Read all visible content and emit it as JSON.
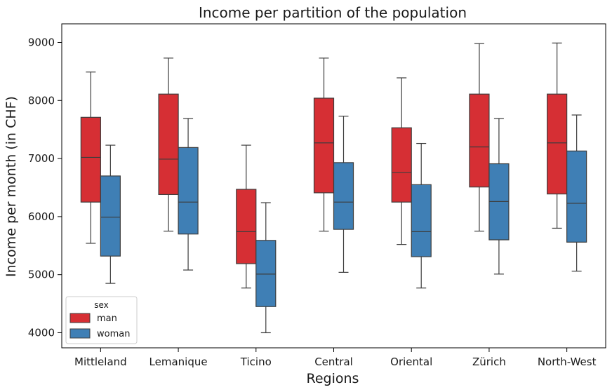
{
  "chart_data": {
    "type": "box",
    "title": "Income per partition of the population",
    "xlabel": "Regions",
    "ylabel": "Income per month (in CHF)",
    "categories": [
      "Mittleland",
      "Lemanique",
      "Ticino",
      "Central",
      "Oriental",
      "Zürich",
      "North-West"
    ],
    "ylim": [
      3740,
      9320
    ],
    "yticks": [
      4000,
      5000,
      6000,
      7000,
      8000,
      9000
    ],
    "grid": false,
    "legend": {
      "title": "sex",
      "position": "bottom-left"
    },
    "series": [
      {
        "name": "man",
        "color": "#d62f34",
        "boxes": [
          {
            "min": 5540,
            "q1": 6250,
            "median": 7020,
            "q3": 7710,
            "max": 8490
          },
          {
            "min": 5750,
            "q1": 6380,
            "median": 6990,
            "q3": 8110,
            "max": 8730
          },
          {
            "min": 4770,
            "q1": 5190,
            "median": 5740,
            "q3": 6470,
            "max": 7230
          },
          {
            "min": 5750,
            "q1": 6410,
            "median": 7270,
            "q3": 8040,
            "max": 8730
          },
          {
            "min": 5520,
            "q1": 6250,
            "median": 6760,
            "q3": 7530,
            "max": 8390
          },
          {
            "min": 5750,
            "q1": 6510,
            "median": 7200,
            "q3": 8110,
            "max": 8980
          },
          {
            "min": 5800,
            "q1": 6390,
            "median": 7270,
            "q3": 8110,
            "max": 8990
          }
        ]
      },
      {
        "name": "woman",
        "color": "#3f7fb5",
        "boxes": [
          {
            "min": 4850,
            "q1": 5320,
            "median": 5990,
            "q3": 6700,
            "max": 7230
          },
          {
            "min": 5080,
            "q1": 5700,
            "median": 6250,
            "q3": 7190,
            "max": 7690
          },
          {
            "min": 4000,
            "q1": 4450,
            "median": 5010,
            "q3": 5590,
            "max": 6240
          },
          {
            "min": 5040,
            "q1": 5780,
            "median": 6250,
            "q3": 6930,
            "max": 7730
          },
          {
            "min": 4770,
            "q1": 5310,
            "median": 5740,
            "q3": 6550,
            "max": 7260
          },
          {
            "min": 5010,
            "q1": 5600,
            "median": 6260,
            "q3": 6910,
            "max": 7690
          },
          {
            "min": 5060,
            "q1": 5560,
            "median": 6230,
            "q3": 7130,
            "max": 7750
          }
        ]
      }
    ]
  }
}
